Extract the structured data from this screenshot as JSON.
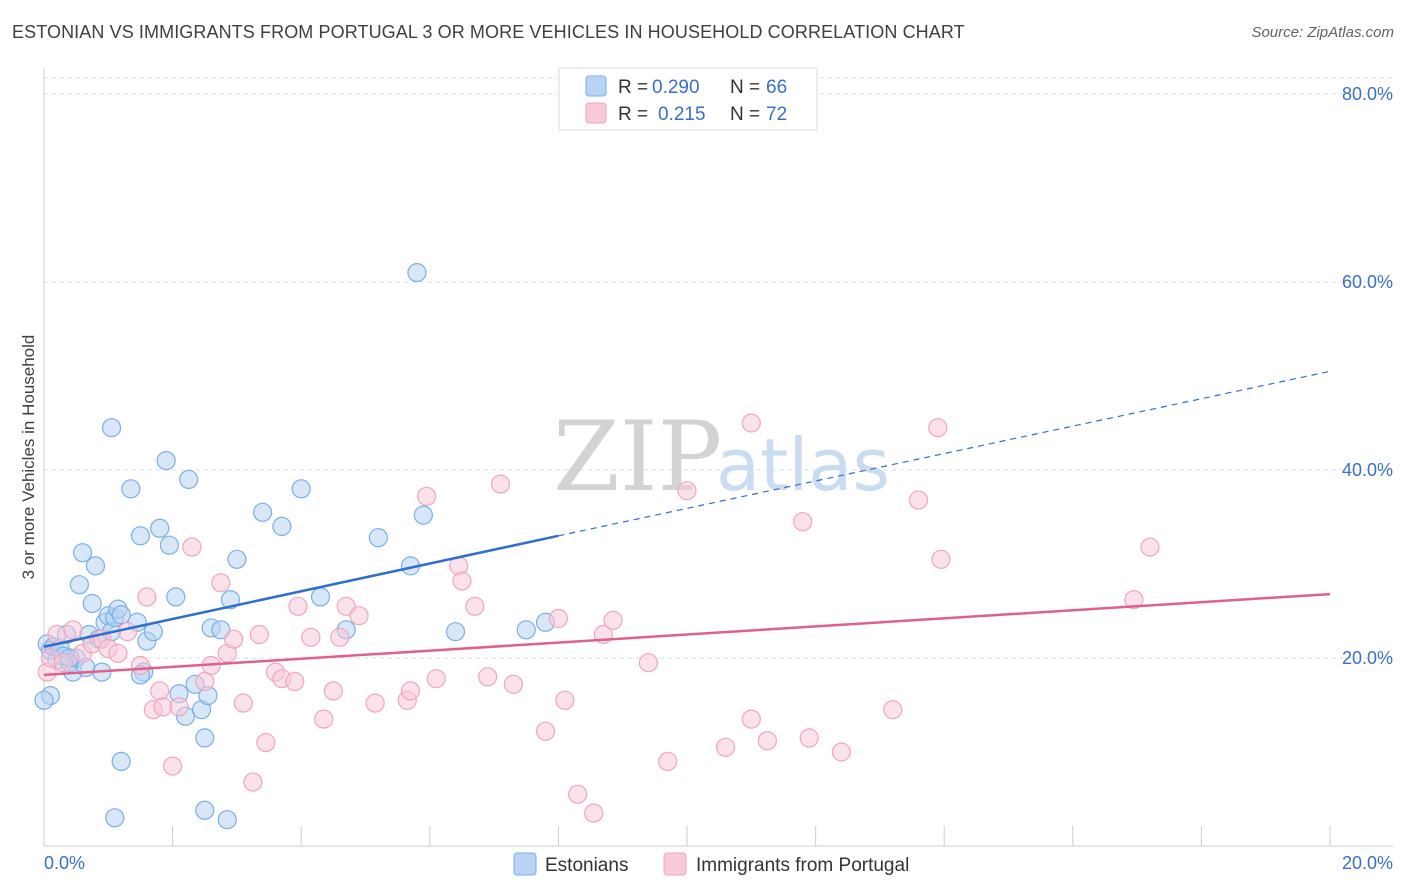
{
  "title": "ESTONIAN VS IMMIGRANTS FROM PORTUGAL 3 OR MORE VEHICLES IN HOUSEHOLD CORRELATION CHART",
  "source": "Source: ZipAtlas.com",
  "watermark": {
    "zip": "ZIP",
    "atlas": "atlas"
  },
  "legend": {
    "rows": [
      {
        "r_label": "R =",
        "r_value": "0.290",
        "n_label": "N =",
        "n_value": "66"
      },
      {
        "r_label": "R =",
        "r_value": "0.215",
        "n_label": "N =",
        "n_value": "72"
      }
    ]
  },
  "chart_data": {
    "type": "scatter",
    "title": "ESTONIAN VS IMMIGRANTS FROM PORTUGAL 3 OR MORE VEHICLES IN HOUSEHOLD CORRELATION CHART",
    "xlabel": "",
    "ylabel": "3 or more Vehicles in Household",
    "xlim": [
      0,
      20
    ],
    "ylim": [
      0,
      80
    ],
    "x_tick_labels": [
      "0.0%",
      "20.0%"
    ],
    "y_ticks": [
      20,
      40,
      60,
      80
    ],
    "y_tick_labels": [
      "20.0%",
      "40.0%",
      "60.0%",
      "80.0%"
    ],
    "grid": true,
    "legend_placement": "top-center",
    "series": [
      {
        "name": "Estonians",
        "color": "#7baee8",
        "fill": "#b8d3f3",
        "trend": {
          "x0": 0.0,
          "y0": 21.2,
          "x1": 8.0,
          "y1": 33.0,
          "dash_to_x": 20.0,
          "dash_to_y": 50.5,
          "color": "#2f6fcb"
        },
        "points": [
          [
            0.05,
            21.5
          ],
          [
            0.1,
            20.8
          ],
          [
            0.15,
            21.2
          ],
          [
            0.2,
            19.8
          ],
          [
            0.25,
            21.0
          ],
          [
            0.3,
            20.2
          ],
          [
            0.35,
            22.5
          ],
          [
            0.4,
            19.5
          ],
          [
            0.45,
            18.5
          ],
          [
            0.5,
            20.0
          ],
          [
            0.55,
            27.8
          ],
          [
            0.6,
            31.2
          ],
          [
            0.65,
            19.0
          ],
          [
            0.7,
            22.5
          ],
          [
            0.75,
            25.8
          ],
          [
            0.8,
            29.8
          ],
          [
            0.85,
            22.0
          ],
          [
            0.9,
            18.5
          ],
          [
            0.95,
            23.8
          ],
          [
            1.0,
            24.5
          ],
          [
            1.05,
            22.8
          ],
          [
            1.1,
            24.3
          ],
          [
            1.15,
            25.2
          ],
          [
            1.2,
            24.6
          ],
          [
            1.35,
            38.0
          ],
          [
            1.45,
            23.8
          ],
          [
            1.5,
            33.0
          ],
          [
            1.55,
            18.5
          ],
          [
            1.6,
            21.8
          ],
          [
            1.7,
            22.8
          ],
          [
            1.8,
            33.8
          ],
          [
            1.9,
            41.0
          ],
          [
            1.95,
            32.0
          ],
          [
            2.05,
            26.5
          ],
          [
            2.1,
            16.2
          ],
          [
            2.2,
            13.8
          ],
          [
            2.25,
            39.0
          ],
          [
            2.35,
            17.2
          ],
          [
            2.45,
            14.5
          ],
          [
            2.55,
            16.0
          ],
          [
            2.6,
            23.2
          ],
          [
            2.75,
            23.0
          ],
          [
            2.9,
            26.2
          ],
          [
            3.0,
            30.5
          ],
          [
            3.4,
            35.5
          ],
          [
            3.7,
            34.0
          ],
          [
            4.0,
            38.0
          ],
          [
            4.3,
            26.5
          ],
          [
            4.7,
            23.0
          ],
          [
            5.2,
            32.8
          ],
          [
            5.7,
            29.8
          ],
          [
            5.8,
            61.0
          ],
          [
            5.9,
            35.2
          ],
          [
            6.4,
            22.8
          ],
          [
            7.5,
            23.0
          ],
          [
            7.8,
            23.8
          ],
          [
            1.05,
            44.5
          ],
          [
            1.2,
            9.0
          ],
          [
            1.1,
            3.0
          ],
          [
            2.5,
            11.5
          ],
          [
            2.5,
            3.8
          ],
          [
            2.85,
            2.8
          ],
          [
            0.1,
            16.0
          ],
          [
            0.4,
            20.0
          ],
          [
            1.5,
            18.2
          ],
          [
            0.0,
            15.5
          ]
        ]
      },
      {
        "name": "Immigrants from Portugal",
        "color": "#f0a6bd",
        "fill": "#f8c9d7",
        "trend": {
          "x0": 0.0,
          "y0": 18.2,
          "x1": 20.0,
          "y1": 26.8,
          "color": "#e0608a"
        },
        "points": [
          [
            0.05,
            18.5
          ],
          [
            0.1,
            20.0
          ],
          [
            0.2,
            22.5
          ],
          [
            0.3,
            19.5
          ],
          [
            0.45,
            23.0
          ],
          [
            0.6,
            20.5
          ],
          [
            0.75,
            21.5
          ],
          [
            0.9,
            22.0
          ],
          [
            1.0,
            21.0
          ],
          [
            1.15,
            20.5
          ],
          [
            1.3,
            22.8
          ],
          [
            1.5,
            19.2
          ],
          [
            1.6,
            26.5
          ],
          [
            1.7,
            14.5
          ],
          [
            1.8,
            16.5
          ],
          [
            1.85,
            14.8
          ],
          [
            2.0,
            8.5
          ],
          [
            2.1,
            14.8
          ],
          [
            2.3,
            31.8
          ],
          [
            2.5,
            17.5
          ],
          [
            2.6,
            19.2
          ],
          [
            2.75,
            28.0
          ],
          [
            2.85,
            20.5
          ],
          [
            2.95,
            22.0
          ],
          [
            3.1,
            15.2
          ],
          [
            3.25,
            6.8
          ],
          [
            3.35,
            22.5
          ],
          [
            3.45,
            11.0
          ],
          [
            3.6,
            18.5
          ],
          [
            3.7,
            17.8
          ],
          [
            3.9,
            17.5
          ],
          [
            3.95,
            25.5
          ],
          [
            4.15,
            22.2
          ],
          [
            4.35,
            13.5
          ],
          [
            4.5,
            16.5
          ],
          [
            4.6,
            22.2
          ],
          [
            4.7,
            25.5
          ],
          [
            4.9,
            24.5
          ],
          [
            5.15,
            15.2
          ],
          [
            5.65,
            15.5
          ],
          [
            5.7,
            16.5
          ],
          [
            5.95,
            37.2
          ],
          [
            6.1,
            17.8
          ],
          [
            6.45,
            29.8
          ],
          [
            6.5,
            28.2
          ],
          [
            6.7,
            25.5
          ],
          [
            6.9,
            18.0
          ],
          [
            7.1,
            38.5
          ],
          [
            7.3,
            17.2
          ],
          [
            7.8,
            12.2
          ],
          [
            8.0,
            24.2
          ],
          [
            8.1,
            15.5
          ],
          [
            8.3,
            5.5
          ],
          [
            8.55,
            3.5
          ],
          [
            8.7,
            22.5
          ],
          [
            8.85,
            24.0
          ],
          [
            9.4,
            19.5
          ],
          [
            9.7,
            9.0
          ],
          [
            10.0,
            37.8
          ],
          [
            10.6,
            10.5
          ],
          [
            11.0,
            45.0
          ],
          [
            11.0,
            13.5
          ],
          [
            11.25,
            11.2
          ],
          [
            11.8,
            34.5
          ],
          [
            11.9,
            11.5
          ],
          [
            12.4,
            10.0
          ],
          [
            13.2,
            14.5
          ],
          [
            13.6,
            36.8
          ],
          [
            13.9,
            44.5
          ],
          [
            13.95,
            30.5
          ],
          [
            16.95,
            26.2
          ],
          [
            17.2,
            31.8
          ]
        ]
      }
    ]
  }
}
